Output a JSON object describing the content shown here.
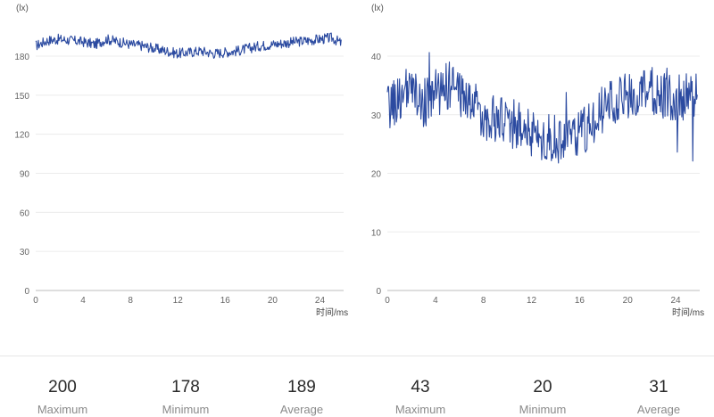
{
  "chart_data": [
    {
      "type": "line",
      "unit_label": "(lx)",
      "xlabel": "时间/ms",
      "ylabel": "",
      "ylim": [
        0,
        200
      ],
      "xlim": [
        0,
        26
      ],
      "yticks": [
        0,
        30,
        60,
        90,
        120,
        150,
        180
      ],
      "xticks": [
        0,
        4,
        8,
        12,
        16,
        20,
        24
      ],
      "grid": true,
      "series": [
        {
          "color": "#2b4aa0",
          "x": [
            0,
            1,
            2,
            3,
            4,
            5,
            6,
            7,
            8,
            9,
            10,
            11,
            12,
            13,
            14,
            15,
            16,
            17,
            18,
            19,
            20,
            21,
            22,
            23,
            24,
            25,
            25.8
          ],
          "y": [
            188,
            192,
            193,
            192,
            191,
            189,
            193,
            191,
            189,
            188,
            186,
            184,
            182,
            183,
            184,
            182,
            183,
            184,
            186,
            188,
            189,
            190,
            191,
            192,
            193,
            194,
            190
          ]
        }
      ],
      "stats": {
        "maximum": {
          "value": "200",
          "label": "Maximum"
        },
        "minimum": {
          "value": "178",
          "label": "Minimum"
        },
        "average": {
          "value": "189",
          "label": "Average"
        }
      }
    },
    {
      "type": "line",
      "unit_label": "(lx)",
      "xlabel": "时间/ms",
      "ylabel": "",
      "ylim": [
        0,
        45
      ],
      "xlim": [
        0,
        26
      ],
      "yticks": [
        0,
        10,
        20,
        30,
        40
      ],
      "xticks": [
        0,
        4,
        8,
        12,
        16,
        20,
        24
      ],
      "grid": true,
      "series": [
        {
          "color": "#2b4aa0",
          "x": [
            0,
            1,
            2,
            3,
            4,
            5,
            6,
            7,
            8,
            9,
            10,
            11,
            12,
            13,
            14,
            15,
            16,
            17,
            18,
            19,
            20,
            21,
            22,
            23,
            24,
            25,
            25.8
          ],
          "y": [
            31,
            33,
            34,
            32,
            33,
            35,
            34,
            32,
            30,
            29,
            29,
            28,
            27,
            26,
            26,
            25,
            27,
            29,
            31,
            32,
            33,
            33,
            34,
            33,
            33,
            33,
            33
          ]
        }
      ],
      "stats": {
        "maximum": {
          "value": "43",
          "label": "Maximum"
        },
        "minimum": {
          "value": "20",
          "label": "Minimum"
        },
        "average": {
          "value": "31",
          "label": "Average"
        }
      }
    }
  ]
}
